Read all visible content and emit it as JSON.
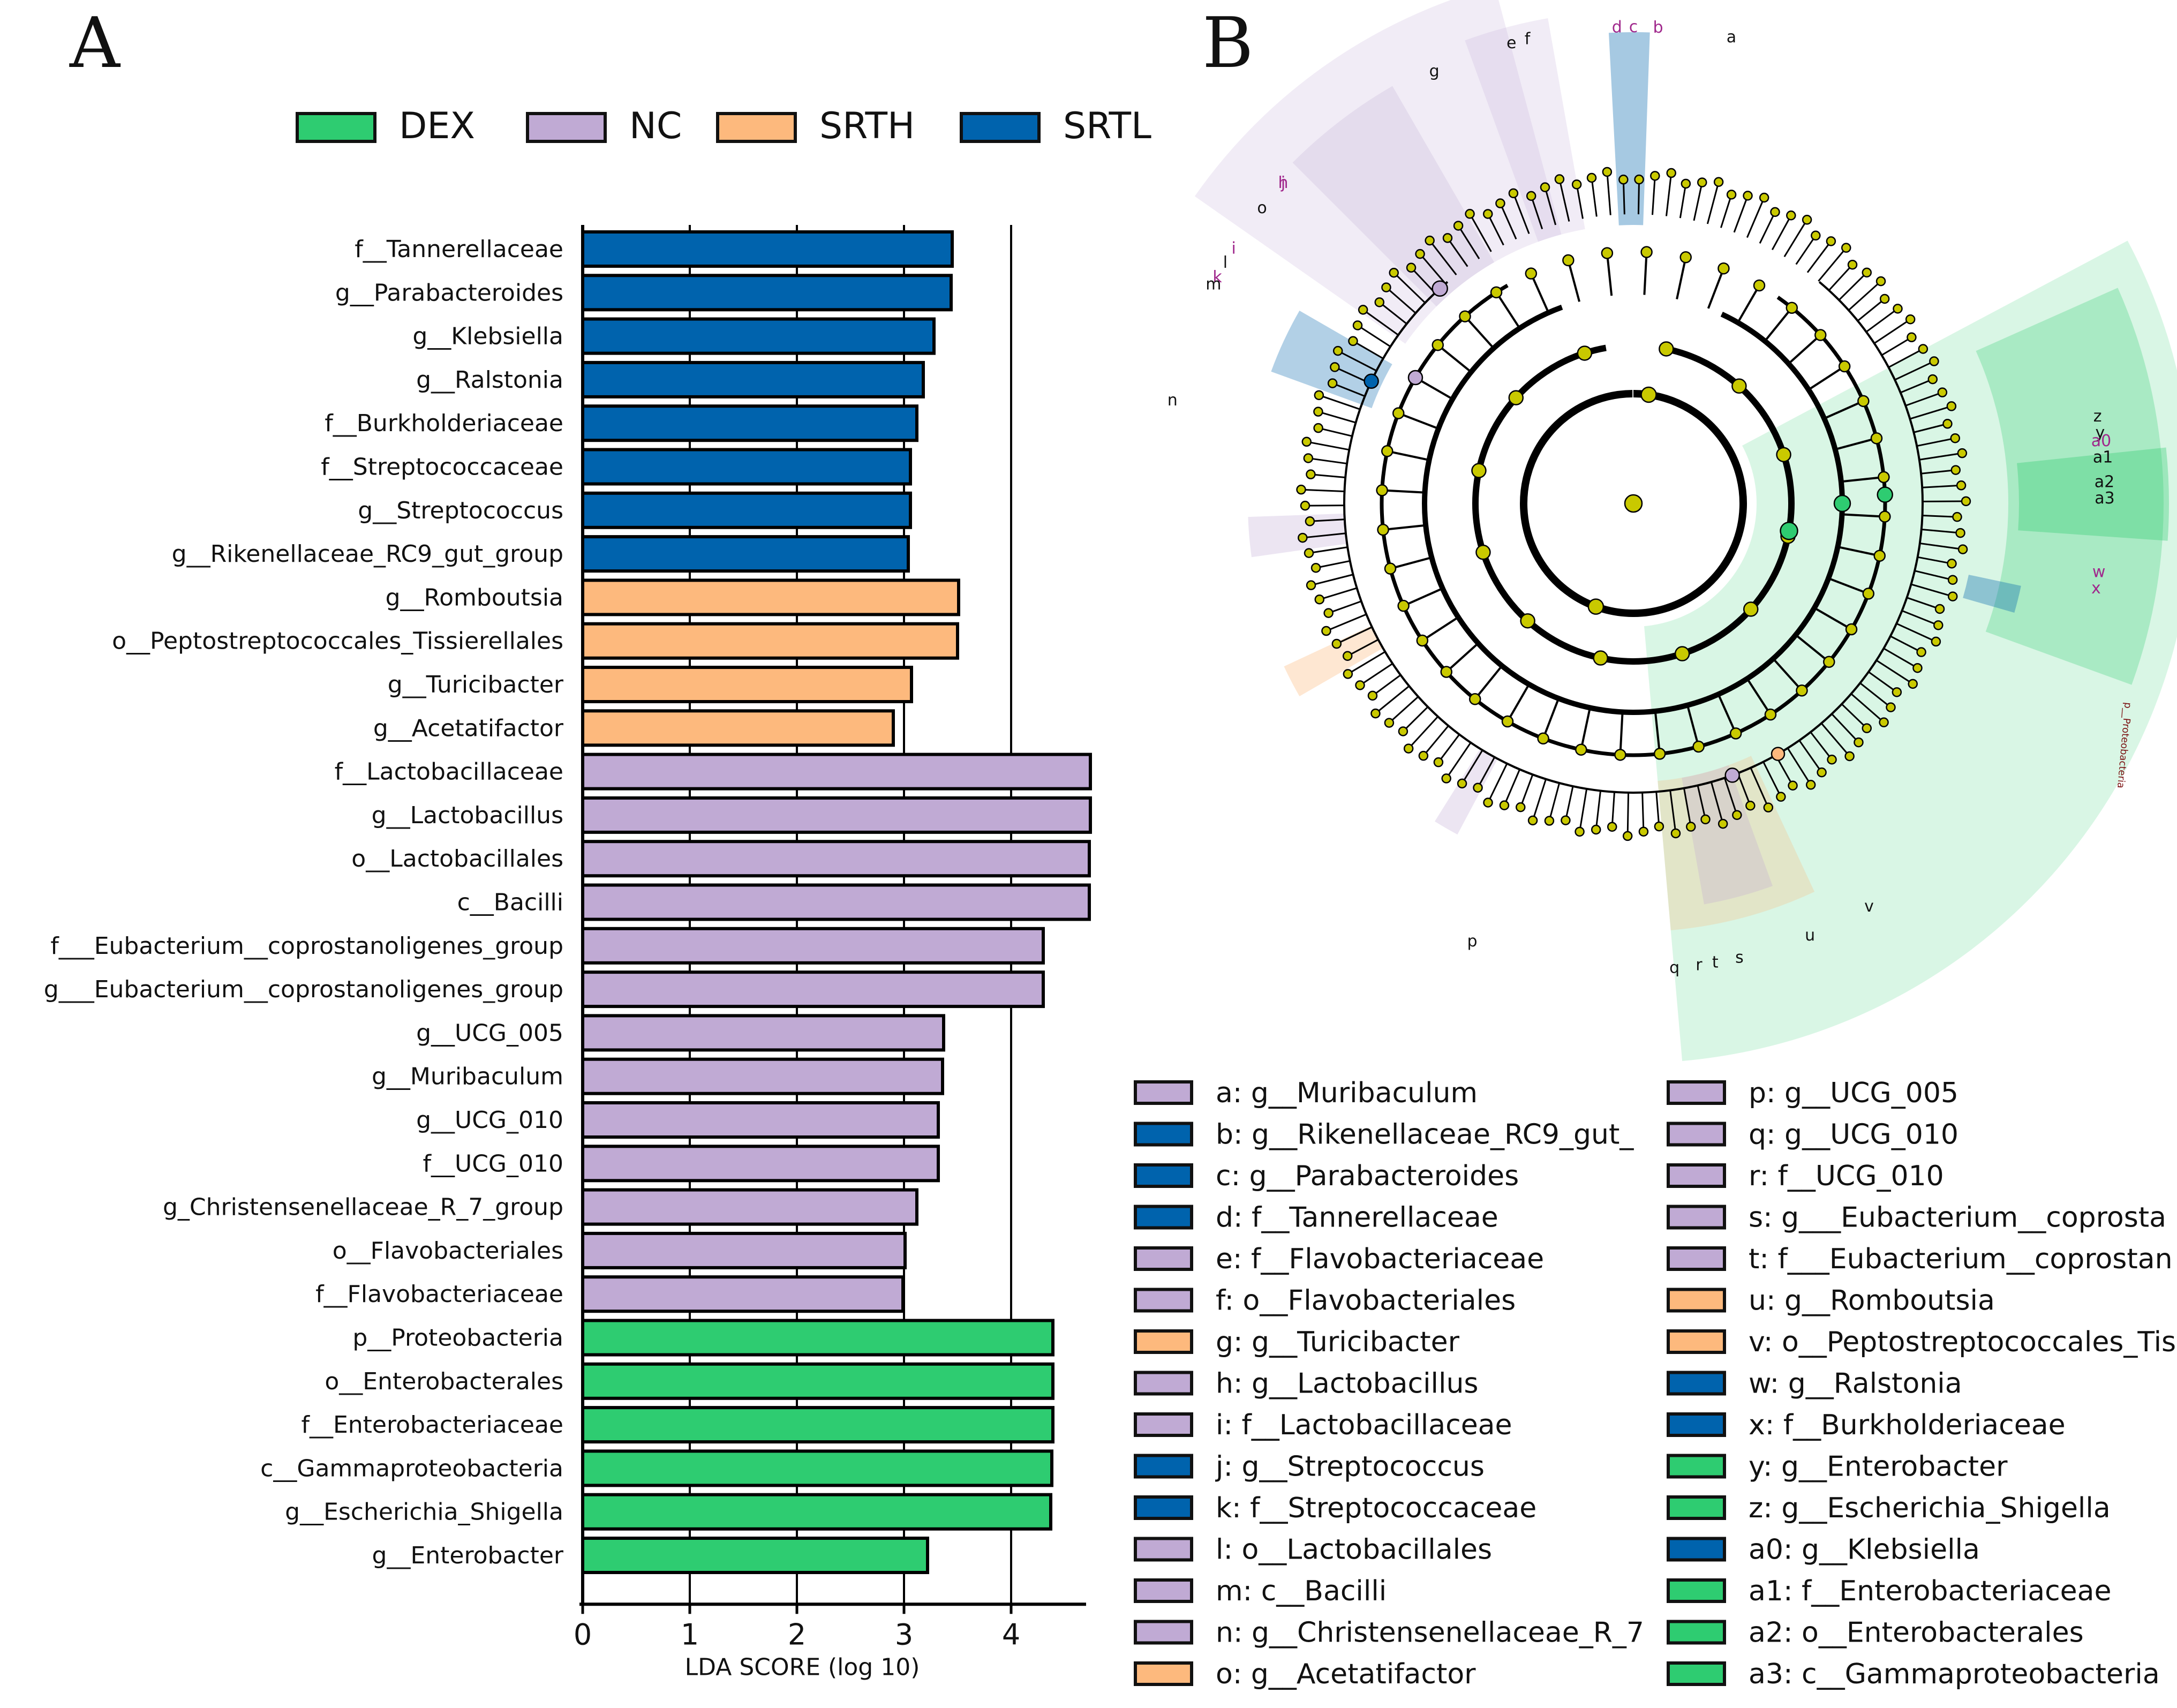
{
  "panel_a_label": "A",
  "panel_b_label": "B",
  "colors": {
    "DEX": "#2ecc71",
    "NC": "#c0aad4",
    "SRTH": "#fdb97d",
    "SRTL": "#0063ad",
    "node": "#c9c900"
  },
  "chart_data": [
    {
      "type": "bar",
      "orientation": "horizontal",
      "title": "",
      "xlabel": "LDA SCORE (log 10)",
      "ylabel": "",
      "xlim": [
        0,
        4.7
      ],
      "xticks": [
        0,
        1,
        2,
        3,
        4
      ],
      "grid": "vertical lines at 1, 2, 3, 4",
      "legend": [
        {
          "group": "DEX",
          "label": "DEX"
        },
        {
          "group": "NC",
          "label": "NC"
        },
        {
          "group": "SRTH",
          "label": "SRTH"
        },
        {
          "group": "SRTL",
          "label": "SRTL"
        }
      ],
      "legend_position": "top",
      "bars": [
        {
          "label": "f__Tannerellaceae",
          "value": 3.45,
          "group": "SRTL"
        },
        {
          "label": "g__Parabacteroides",
          "value": 3.44,
          "group": "SRTL"
        },
        {
          "label": "g__Klebsiella",
          "value": 3.28,
          "group": "SRTL"
        },
        {
          "label": "g__Ralstonia",
          "value": 3.18,
          "group": "SRTL"
        },
        {
          "label": "f__Burkholderiaceae",
          "value": 3.12,
          "group": "SRTL"
        },
        {
          "label": "f__Streptococcaceae",
          "value": 3.06,
          "group": "SRTL"
        },
        {
          "label": "g__Streptococcus",
          "value": 3.06,
          "group": "SRTL"
        },
        {
          "label": "g__Rikenellaceae_RC9_gut_group",
          "value": 3.04,
          "group": "SRTL"
        },
        {
          "label": "g__Romboutsia",
          "value": 3.51,
          "group": "SRTH"
        },
        {
          "label": "o__Peptostreptococcales_Tissierellales",
          "value": 3.5,
          "group": "SRTH"
        },
        {
          "label": "g__Turicibacter",
          "value": 3.07,
          "group": "SRTH"
        },
        {
          "label": "g__Acetatifactor",
          "value": 2.9,
          "group": "SRTH"
        },
        {
          "label": "f__Lactobacillaceae",
          "value": 4.74,
          "group": "NC"
        },
        {
          "label": "g__Lactobacillus",
          "value": 4.74,
          "group": "NC"
        },
        {
          "label": "o__Lactobacillales",
          "value": 4.73,
          "group": "NC"
        },
        {
          "label": "c__Bacilli",
          "value": 4.73,
          "group": "NC"
        },
        {
          "label": "f___Eubacterium__coprostanoligenes_group",
          "value": 4.3,
          "group": "NC"
        },
        {
          "label": "g___Eubacterium__coprostanoligenes_group",
          "value": 4.3,
          "group": "NC"
        },
        {
          "label": "g__UCG_005",
          "value": 3.37,
          "group": "NC"
        },
        {
          "label": "g__Muribaculum",
          "value": 3.36,
          "group": "NC"
        },
        {
          "label": "g__UCG_010",
          "value": 3.32,
          "group": "NC"
        },
        {
          "label": "f__UCG_010",
          "value": 3.32,
          "group": "NC"
        },
        {
          "label": "g_Christensenellaceae_R_7_group",
          "value": 3.12,
          "group": "NC"
        },
        {
          "label": "o__Flavobacteriales",
          "value": 3.01,
          "group": "NC"
        },
        {
          "label": "f__Flavobacteriaceae",
          "value": 2.99,
          "group": "NC"
        },
        {
          "label": "p__Proteobacteria",
          "value": 4.39,
          "group": "DEX"
        },
        {
          "label": "o__Enterobacterales",
          "value": 4.39,
          "group": "DEX"
        },
        {
          "label": "f__Enterobacteriaceae",
          "value": 4.39,
          "group": "DEX"
        },
        {
          "label": "c__Gammaproteobacteria",
          "value": 4.38,
          "group": "DEX"
        },
        {
          "label": "g__Escherichia_Shigella",
          "value": 4.37,
          "group": "DEX"
        },
        {
          "label": "g__Enterobacter",
          "value": 3.22,
          "group": "DEX"
        }
      ]
    }
  ],
  "cladogram": {
    "type": "cladogram",
    "ring_letters": [
      {
        "id": "a",
        "group": "NC"
      },
      {
        "id": "b",
        "group": "SRTL"
      },
      {
        "id": "c",
        "group": "SRTL"
      },
      {
        "id": "d",
        "group": "SRTL"
      },
      {
        "id": "e",
        "group": "NC"
      },
      {
        "id": "f",
        "group": "NC"
      },
      {
        "id": "g",
        "group": "SRTH"
      },
      {
        "id": "h",
        "group": "NC"
      },
      {
        "id": "i",
        "group": "NC"
      },
      {
        "id": "j",
        "group": "SRTL"
      },
      {
        "id": "k",
        "group": "SRTL"
      },
      {
        "id": "l",
        "group": "NC"
      },
      {
        "id": "m",
        "group": "NC"
      },
      {
        "id": "n",
        "group": "NC"
      },
      {
        "id": "o",
        "group": "SRTH"
      },
      {
        "id": "w",
        "group": "SRTL"
      },
      {
        "id": "x",
        "group": "SRTL"
      },
      {
        "id": "y",
        "group": "DEX"
      },
      {
        "id": "z",
        "group": "DEX"
      },
      {
        "id": "a0",
        "group": "SRTL"
      },
      {
        "id": "a1",
        "group": "DEX"
      },
      {
        "id": "a2",
        "group": "DEX"
      },
      {
        "id": "a3",
        "group": "DEX"
      },
      {
        "id": "p",
        "group": "NC"
      },
      {
        "id": "q",
        "group": "NC"
      },
      {
        "id": "r",
        "group": "NC"
      },
      {
        "id": "s",
        "group": "NC"
      },
      {
        "id": "t",
        "group": "NC"
      },
      {
        "id": "u",
        "group": "SRTH"
      },
      {
        "id": "v",
        "group": "SRTH"
      }
    ],
    "sector_label": "p__Proteobacteria",
    "key_col1": [
      {
        "text": "a: g__Muribaculum",
        "group": "NC"
      },
      {
        "text": "b: g__Rikenellaceae_RC9_gut_",
        "group": "SRTL"
      },
      {
        "text": "c: g__Parabacteroides",
        "group": "SRTL"
      },
      {
        "text": "d: f__Tannerellaceae",
        "group": "SRTL"
      },
      {
        "text": "e: f__Flavobacteriaceae",
        "group": "NC"
      },
      {
        "text": "f: o__Flavobacteriales",
        "group": "NC"
      },
      {
        "text": "g: g__Turicibacter",
        "group": "SRTH"
      },
      {
        "text": "h: g__Lactobacillus",
        "group": "NC"
      },
      {
        "text": "i: f__Lactobacillaceae",
        "group": "NC"
      },
      {
        "text": "j: g__Streptococcus",
        "group": "SRTL"
      },
      {
        "text": "k: f__Streptococcaceae",
        "group": "SRTL"
      },
      {
        "text": "l: o__Lactobacillales",
        "group": "NC"
      },
      {
        "text": "m: c__Bacilli",
        "group": "NC"
      },
      {
        "text": "n: g__Christensenellaceae_R_7",
        "group": "NC"
      },
      {
        "text": "o: g__Acetatifactor",
        "group": "SRTH"
      }
    ],
    "key_col2": [
      {
        "text": "p: g__UCG_005",
        "group": "NC"
      },
      {
        "text": "q: g__UCG_010",
        "group": "NC"
      },
      {
        "text": "r: f__UCG_010",
        "group": "NC"
      },
      {
        "text": "s: g___Eubacterium__coprosta",
        "group": "NC"
      },
      {
        "text": "t: f___Eubacterium__coprostan",
        "group": "NC"
      },
      {
        "text": "u: g__Romboutsia",
        "group": "SRTH"
      },
      {
        "text": "v: o__Peptostreptococcales_Tis",
        "group": "SRTH"
      },
      {
        "text": "w: g__Ralstonia",
        "group": "SRTL"
      },
      {
        "text": "x: f__Burkholderiaceae",
        "group": "SRTL"
      },
      {
        "text": "y: g__Enterobacter",
        "group": "DEX"
      },
      {
        "text": "z: g__Escherichia_Shigella",
        "group": "DEX"
      },
      {
        "text": "a0: g__Klebsiella",
        "group": "SRTL"
      },
      {
        "text": "a1: f__Enterobacteriaceae",
        "group": "DEX"
      },
      {
        "text": "a2: o__Enterobacterales",
        "group": "DEX"
      },
      {
        "text": "a3: c__Gammaproteobacteria",
        "group": "DEX"
      }
    ]
  }
}
